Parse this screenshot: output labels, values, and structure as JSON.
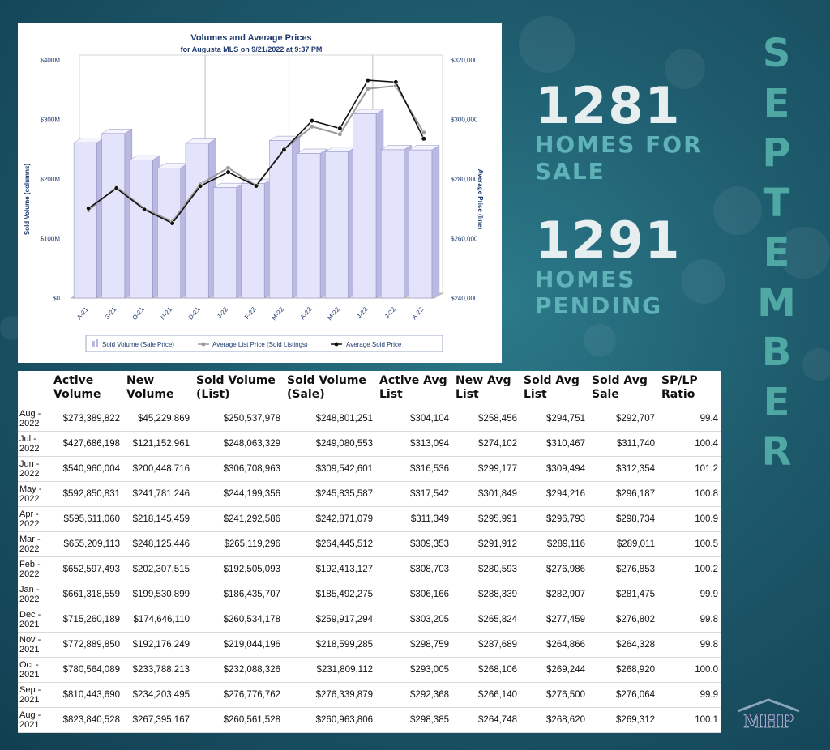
{
  "chart_data": {
    "type": "bar+line",
    "title": "Volumes and Average Prices",
    "subtitle": "for Augusta MLS on 9/21/2022 at 9:37 PM",
    "categories": [
      "A-21",
      "S-21",
      "O-21",
      "N-21",
      "D-21",
      "J-22",
      "F-22",
      "M-22",
      "A-22",
      "M-22",
      "J-22",
      "J-22",
      "A-22"
    ],
    "ylabel_left": "Sold Volume (columns)",
    "ylabel_right": "Average Price (line)",
    "left_ticks": [
      "$0",
      "$100M",
      "$200M",
      "$300M",
      "$400M"
    ],
    "right_ticks": [
      "$240,000",
      "$260,000",
      "$280,000",
      "$300,000",
      "$320,000"
    ],
    "ylim_left": [
      0,
      400000000
    ],
    "ylim_right": [
      240000,
      320000
    ],
    "series": [
      {
        "name": "Sold Volume (Sale Price)",
        "type": "bar",
        "axis": "left",
        "values": [
          260963806,
          276339879,
          231809112,
          218599285,
          259917294,
          185492275,
          192413127,
          264445512,
          242871079,
          245835587,
          309542601,
          249080553,
          248801251
        ]
      },
      {
        "name": "Average List Price (Sold Listings)",
        "type": "line",
        "axis": "right",
        "values": [
          268620,
          276500,
          269244,
          264866,
          277459,
          282907,
          276986,
          289116,
          296793,
          294216,
          309494,
          310467,
          294751
        ]
      },
      {
        "name": "Average Sold Price",
        "type": "line",
        "axis": "right",
        "values": [
          269312,
          276064,
          268920,
          264328,
          276802,
          281475,
          276853,
          289011,
          298734,
          296187,
          312354,
          311740,
          292707
        ]
      }
    ]
  },
  "stats": {
    "for_sale_number": "1281",
    "for_sale_label_1": "HOMES FOR",
    "for_sale_label_2": "SALE",
    "pending_number": "1291",
    "pending_label_1": "HOMES",
    "pending_label_2": "PENDING"
  },
  "month_letters": [
    "S",
    "E",
    "P",
    "T",
    "E",
    "M",
    "B",
    "E",
    "R"
  ],
  "table": {
    "headers": [
      [
        "",
        ""
      ],
      [
        "Active",
        "Volume"
      ],
      [
        "New",
        "Volume"
      ],
      [
        "Sold Volume",
        "(List)"
      ],
      [
        "Sold Volume",
        "(Sale)"
      ],
      [
        "Active Avg",
        "List"
      ],
      [
        "New Avg",
        "List"
      ],
      [
        "Sold Avg",
        "List"
      ],
      [
        "Sold Avg",
        "Sale"
      ],
      [
        "SP/LP",
        "Ratio"
      ]
    ],
    "rows": [
      {
        "m": "Aug -",
        "y": "2022",
        "active_volume": "$273,389,822",
        "new_volume": "$45,229,869",
        "sold_volume_list": "$250,537,978",
        "sold_volume_sale": "$248,801,251",
        "active_avg_list": "$304,104",
        "new_avg_list": "$258,456",
        "sold_avg_list": "$294,751",
        "sold_avg_sale": "$292,707",
        "sp_lp_ratio": "99.4"
      },
      {
        "m": "Jul -",
        "y": "2022",
        "active_volume": "$427,686,198",
        "new_volume": "$121,152,961",
        "sold_volume_list": "$248,063,329",
        "sold_volume_sale": "$249,080,553",
        "active_avg_list": "$313,094",
        "new_avg_list": "$274,102",
        "sold_avg_list": "$310,467",
        "sold_avg_sale": "$311,740",
        "sp_lp_ratio": "100.4"
      },
      {
        "m": "Jun -",
        "y": "2022",
        "active_volume": "$540,960,004",
        "new_volume": "$200,448,716",
        "sold_volume_list": "$306,708,963",
        "sold_volume_sale": "$309,542,601",
        "active_avg_list": "$316,536",
        "new_avg_list": "$299,177",
        "sold_avg_list": "$309,494",
        "sold_avg_sale": "$312,354",
        "sp_lp_ratio": "101.2"
      },
      {
        "m": "May -",
        "y": "2022",
        "active_volume": "$592,850,831",
        "new_volume": "$241,781,246",
        "sold_volume_list": "$244,199,356",
        "sold_volume_sale": "$245,835,587",
        "active_avg_list": "$317,542",
        "new_avg_list": "$301,849",
        "sold_avg_list": "$294,216",
        "sold_avg_sale": "$296,187",
        "sp_lp_ratio": "100.8"
      },
      {
        "m": "Apr -",
        "y": "2022",
        "active_volume": "$595,611,060",
        "new_volume": "$218,145,459",
        "sold_volume_list": "$241,292,586",
        "sold_volume_sale": "$242,871,079",
        "active_avg_list": "$311,349",
        "new_avg_list": "$295,991",
        "sold_avg_list": "$296,793",
        "sold_avg_sale": "$298,734",
        "sp_lp_ratio": "100.9"
      },
      {
        "m": "Mar -",
        "y": "2022",
        "active_volume": "$655,209,113",
        "new_volume": "$248,125,446",
        "sold_volume_list": "$265,119,296",
        "sold_volume_sale": "$264,445,512",
        "active_avg_list": "$309,353",
        "new_avg_list": "$291,912",
        "sold_avg_list": "$289,116",
        "sold_avg_sale": "$289,011",
        "sp_lp_ratio": "100.5"
      },
      {
        "m": "Feb -",
        "y": "2022",
        "active_volume": "$652,597,493",
        "new_volume": "$202,307,515",
        "sold_volume_list": "$192,505,093",
        "sold_volume_sale": "$192,413,127",
        "active_avg_list": "$308,703",
        "new_avg_list": "$280,593",
        "sold_avg_list": "$276,986",
        "sold_avg_sale": "$276,853",
        "sp_lp_ratio": "100.2"
      },
      {
        "m": "Jan -",
        "y": "2022",
        "active_volume": "$661,318,559",
        "new_volume": "$199,530,899",
        "sold_volume_list": "$186,435,707",
        "sold_volume_sale": "$185,492,275",
        "active_avg_list": "$306,166",
        "new_avg_list": "$288,339",
        "sold_avg_list": "$282,907",
        "sold_avg_sale": "$281,475",
        "sp_lp_ratio": "99.9"
      },
      {
        "m": "Dec -",
        "y": "2021",
        "active_volume": "$715,260,189",
        "new_volume": "$174,646,110",
        "sold_volume_list": "$260,534,178",
        "sold_volume_sale": "$259,917,294",
        "active_avg_list": "$303,205",
        "new_avg_list": "$265,824",
        "sold_avg_list": "$277,459",
        "sold_avg_sale": "$276,802",
        "sp_lp_ratio": "99.8"
      },
      {
        "m": "Nov -",
        "y": "2021",
        "active_volume": "$772,889,850",
        "new_volume": "$192,176,249",
        "sold_volume_list": "$219,044,196",
        "sold_volume_sale": "$218,599,285",
        "active_avg_list": "$298,759",
        "new_avg_list": "$287,689",
        "sold_avg_list": "$264,866",
        "sold_avg_sale": "$264,328",
        "sp_lp_ratio": "99.8"
      },
      {
        "m": "Oct -",
        "y": "2021",
        "active_volume": "$780,564,089",
        "new_volume": "$233,788,213",
        "sold_volume_list": "$232,088,326",
        "sold_volume_sale": "$231,809,112",
        "active_avg_list": "$293,005",
        "new_avg_list": "$268,106",
        "sold_avg_list": "$269,244",
        "sold_avg_sale": "$268,920",
        "sp_lp_ratio": "100.0"
      },
      {
        "m": "Sep -",
        "y": "2021",
        "active_volume": "$810,443,690",
        "new_volume": "$234,203,495",
        "sold_volume_list": "$276,776,762",
        "sold_volume_sale": "$276,339,879",
        "active_avg_list": "$292,368",
        "new_avg_list": "$266,140",
        "sold_avg_list": "$276,500",
        "sold_avg_sale": "$276,064",
        "sp_lp_ratio": "99.9"
      },
      {
        "m": "Aug -",
        "y": "2021",
        "active_volume": "$823,840,528",
        "new_volume": "$267,395,167",
        "sold_volume_list": "$260,561,528",
        "sold_volume_sale": "$260,963,806",
        "active_avg_list": "$298,385",
        "new_avg_list": "$264,748",
        "sold_avg_list": "$268,620",
        "sold_avg_sale": "$269,312",
        "sp_lp_ratio": "100.1"
      }
    ]
  },
  "logo": {
    "text": "MHP"
  },
  "colors": {
    "bar_face": "#e3e3fb",
    "bar_side": "#b9b9e2",
    "bar_top": "#f4f4ff",
    "list_line": "#9a9a9a",
    "sold_line": "#111111",
    "accent": "#4fa8a3"
  }
}
